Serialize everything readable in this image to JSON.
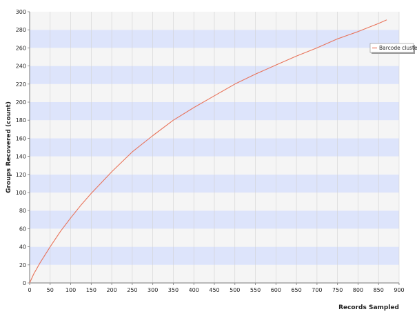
{
  "chart_data": {
    "type": "line",
    "title": "",
    "xlabel": "Records Sampled",
    "ylabel": "Groups Recovered (count)",
    "xlim": [
      0,
      900
    ],
    "ylim": [
      0,
      300
    ],
    "x_ticks": [
      0,
      50,
      100,
      150,
      200,
      250,
      300,
      350,
      400,
      450,
      500,
      550,
      600,
      650,
      700,
      750,
      800,
      850,
      900
    ],
    "y_ticks": [
      0,
      20,
      40,
      60,
      80,
      100,
      120,
      140,
      160,
      180,
      200,
      220,
      240,
      260,
      280,
      300
    ],
    "grid": true,
    "legend_position": "top-right",
    "colors": {
      "series": "#e8735a",
      "band_light": "#f5f5f5",
      "band_blue": "#dde4fb",
      "gridline": "#d2d2d2"
    },
    "series": [
      {
        "name": "Barcode cluster",
        "x": [
          0,
          10,
          25,
          50,
          75,
          100,
          125,
          150,
          175,
          200,
          250,
          300,
          350,
          400,
          450,
          500,
          550,
          600,
          650,
          700,
          750,
          800,
          850,
          870
        ],
        "y": [
          0,
          10,
          22,
          40,
          57,
          72,
          86,
          99,
          111,
          123,
          145,
          163,
          180,
          194,
          207,
          220,
          231,
          241,
          251,
          260,
          270,
          278,
          287,
          291
        ]
      }
    ]
  }
}
